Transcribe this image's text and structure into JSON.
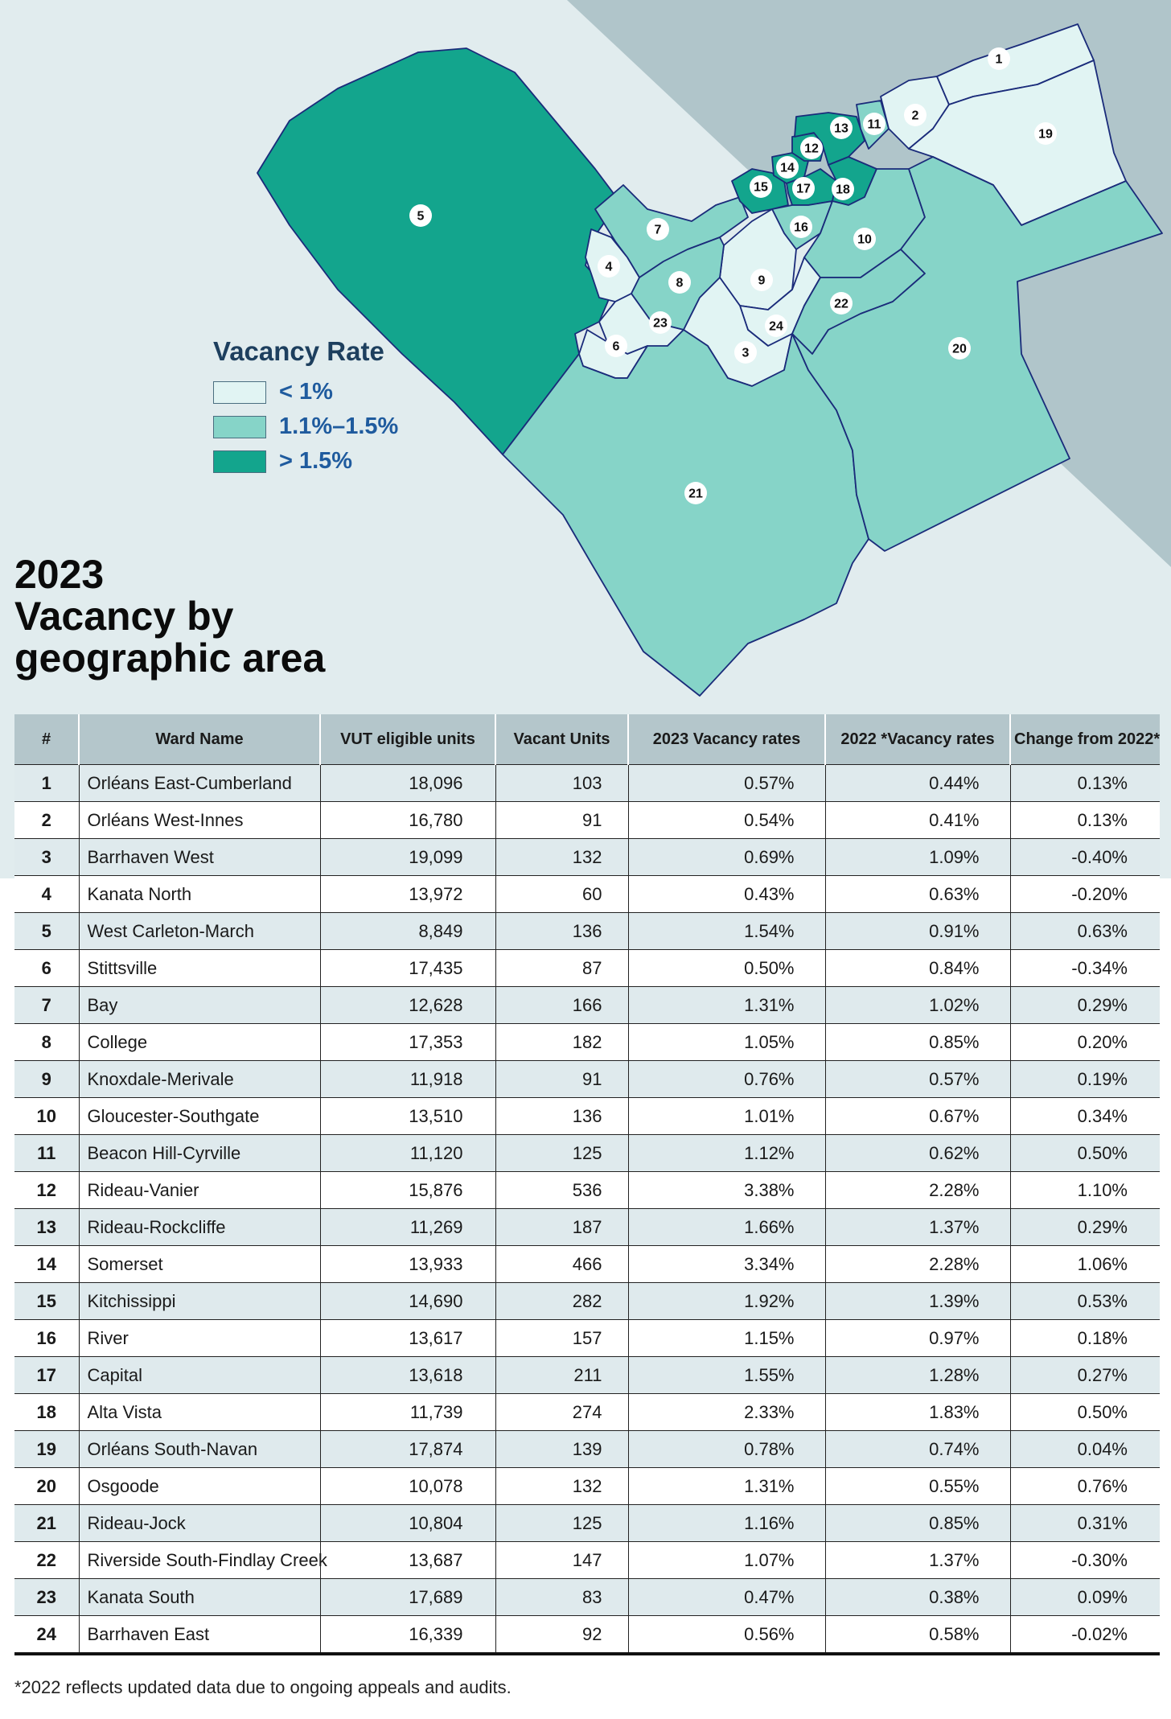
{
  "colors": {
    "low": "#e1f4f3",
    "mid": "#86d4c8",
    "high": "#13a58d",
    "ward_border": "#1a2b7a",
    "backdrop_dark": "#b0c5ca",
    "backdrop_light": "#e1ecee",
    "header_bg": "#b4c6cb",
    "row_alt_bg": "#dfeaed"
  },
  "legend": {
    "title": "Vacancy Rate",
    "items": [
      {
        "label": "< 1%",
        "color": "#e1f4f3"
      },
      {
        "label": "1.1%–1.5%",
        "color": "#86d4c8"
      },
      {
        "label": "> 1.5%",
        "color": "#13a58d"
      }
    ]
  },
  "heading": {
    "line1": "2023",
    "line2": "Vacancy by",
    "line3": "geographic area"
  },
  "map_ward_labels": [
    "1",
    "2",
    "3",
    "4",
    "5",
    "6",
    "7",
    "8",
    "9",
    "10",
    "11",
    "12",
    "13",
    "14",
    "15",
    "16",
    "17",
    "18",
    "19",
    "20",
    "21",
    "22",
    "23",
    "24"
  ],
  "table": {
    "headers": [
      "#",
      "Ward Name",
      "VUT eligible units",
      "Vacant Units",
      "2023 Vacancy rates",
      "2022 *Vacancy rates",
      "Change from 2022*"
    ],
    "rows": [
      [
        "1",
        "Orléans East-Cumberland",
        "18,096",
        "103",
        "0.57%",
        "0.44%",
        "0.13%"
      ],
      [
        "2",
        "Orléans West-Innes",
        "16,780",
        "91",
        "0.54%",
        "0.41%",
        "0.13%"
      ],
      [
        "3",
        "Barrhaven West",
        "19,099",
        "132",
        "0.69%",
        "1.09%",
        "-0.40%"
      ],
      [
        "4",
        "Kanata North",
        "13,972",
        "60",
        "0.43%",
        "0.63%",
        "-0.20%"
      ],
      [
        "5",
        "West Carleton-March",
        "8,849",
        "136",
        "1.54%",
        "0.91%",
        "0.63%"
      ],
      [
        "6",
        "Stittsville",
        "17,435",
        "87",
        "0.50%",
        "0.84%",
        "-0.34%"
      ],
      [
        "7",
        "Bay",
        "12,628",
        "166",
        "1.31%",
        "1.02%",
        "0.29%"
      ],
      [
        "8",
        "College",
        "17,353",
        "182",
        "1.05%",
        "0.85%",
        "0.20%"
      ],
      [
        "9",
        "Knoxdale-Merivale",
        "11,918",
        "91",
        "0.76%",
        "0.57%",
        "0.19%"
      ],
      [
        "10",
        "Gloucester-Southgate",
        "13,510",
        "136",
        "1.01%",
        "0.67%",
        "0.34%"
      ],
      [
        "11",
        "Beacon Hill-Cyrville",
        "11,120",
        "125",
        "1.12%",
        "0.62%",
        "0.50%"
      ],
      [
        "12",
        "Rideau-Vanier",
        "15,876",
        "536",
        "3.38%",
        "2.28%",
        "1.10%"
      ],
      [
        "13",
        "Rideau-Rockcliffe",
        "11,269",
        "187",
        "1.66%",
        "1.37%",
        "0.29%"
      ],
      [
        "14",
        "Somerset",
        "13,933",
        "466",
        "3.34%",
        "2.28%",
        "1.06%"
      ],
      [
        "15",
        "Kitchissippi",
        "14,690",
        "282",
        "1.92%",
        "1.39%",
        "0.53%"
      ],
      [
        "16",
        "River",
        "13,617",
        "157",
        "1.15%",
        "0.97%",
        "0.18%"
      ],
      [
        "17",
        "Capital",
        "13,618",
        "211",
        "1.55%",
        "1.28%",
        "0.27%"
      ],
      [
        "18",
        "Alta Vista",
        "11,739",
        "274",
        "2.33%",
        "1.83%",
        "0.50%"
      ],
      [
        "19",
        "Orléans South-Navan",
        "17,874",
        "139",
        "0.78%",
        "0.74%",
        "0.04%"
      ],
      [
        "20",
        "Osgoode",
        "10,078",
        "132",
        "1.31%",
        "0.55%",
        "0.76%"
      ],
      [
        "21",
        "Rideau-Jock",
        "10,804",
        "125",
        "1.16%",
        "0.85%",
        "0.31%"
      ],
      [
        "22",
        "Riverside South-Findlay Creek",
        "13,687",
        "147",
        "1.07%",
        "1.37%",
        "-0.30%"
      ],
      [
        "23",
        "Kanata South",
        "17,689",
        "83",
        "0.47%",
        "0.38%",
        "0.09%"
      ],
      [
        "24",
        "Barrhaven East",
        "16,339",
        "92",
        "0.56%",
        "0.58%",
        "-0.02%"
      ]
    ]
  },
  "footnote": "*2022 reflects updated data due to ongoing appeals and audits."
}
